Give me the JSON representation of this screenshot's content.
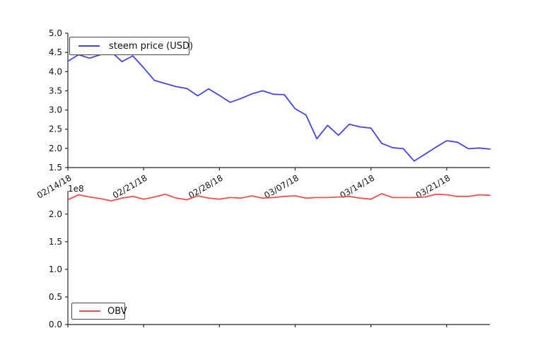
{
  "figure": {
    "background": "#ffffff",
    "spine_color": "#262626",
    "title": ""
  },
  "chart_data": [
    {
      "type": "line",
      "title": "",
      "xlabel": "",
      "ylabel": "",
      "grid": false,
      "legend": {
        "position": "upper-left",
        "entries": [
          {
            "label": "steem price (USD)",
            "color": "#4446dc"
          }
        ]
      },
      "ylim": [
        1.5,
        5.0
      ],
      "ytick_labels": [
        "1.5",
        "2.0",
        "2.5",
        "3.0",
        "3.5",
        "4.0",
        "4.5",
        "5.0"
      ],
      "yticks": [
        1.5,
        2.0,
        2.5,
        3.0,
        3.5,
        4.0,
        4.5,
        5.0
      ],
      "xtick_labels": [
        "02/14/18",
        "02/21/18",
        "02/28/18",
        "03/07/18",
        "03/14/18",
        "03/21/18"
      ],
      "xtick_day_index": [
        0,
        7,
        14,
        21,
        28,
        35
      ],
      "x": [
        "02/14/18",
        "02/15/18",
        "02/16/18",
        "02/17/18",
        "02/18/18",
        "02/19/18",
        "02/20/18",
        "02/21/18",
        "02/22/18",
        "02/23/18",
        "02/24/18",
        "02/25/18",
        "02/26/18",
        "02/27/18",
        "02/28/18",
        "03/01/18",
        "03/02/18",
        "03/03/18",
        "03/04/18",
        "03/05/18",
        "03/06/18",
        "03/07/18",
        "03/08/18",
        "03/09/18",
        "03/10/18",
        "03/11/18",
        "03/12/18",
        "03/13/18",
        "03/14/18",
        "03/15/18",
        "03/16/18",
        "03/17/18",
        "03/18/18",
        "03/19/18",
        "03/20/18",
        "03/21/18",
        "03/22/18",
        "03/23/18",
        "03/24/18",
        "03/25/18"
      ],
      "series": [
        {
          "name": "steem price (USD)",
          "color": "#4446dc",
          "values": [
            4.27,
            4.44,
            4.35,
            4.44,
            4.52,
            4.26,
            4.41,
            4.1,
            3.77,
            3.69,
            3.61,
            3.56,
            3.37,
            3.55,
            3.38,
            3.2,
            3.3,
            3.42,
            3.5,
            3.41,
            3.4,
            3.03,
            2.87,
            2.25,
            2.6,
            2.34,
            2.63,
            2.56,
            2.53,
            2.13,
            2.02,
            1.99,
            1.67,
            1.85,
            2.03,
            2.2,
            2.16,
            1.99,
            2.01,
            1.98
          ]
        }
      ]
    },
    {
      "type": "line",
      "title": "",
      "xlabel": "",
      "ylabel": "",
      "grid": false,
      "offset_label": "1e8",
      "units_multiplier": 100000000,
      "legend": {
        "position": "lower-left",
        "entries": [
          {
            "label": "OBV",
            "color": "#ef5151"
          }
        ]
      },
      "ylim": [
        0.0,
        2.42
      ],
      "ytick_labels": [
        "0.0",
        "0.5",
        "1.0",
        "1.5",
        "2.0"
      ],
      "yticks": [
        0.0,
        0.5,
        1.0,
        1.5,
        2.0
      ],
      "xtick_labels": [],
      "xtick_day_index": [
        0,
        7,
        14,
        21,
        28,
        35
      ],
      "x": [
        "02/14/18",
        "02/15/18",
        "02/16/18",
        "02/17/18",
        "02/18/18",
        "02/19/18",
        "02/20/18",
        "02/21/18",
        "02/22/18",
        "02/23/18",
        "02/24/18",
        "02/25/18",
        "02/26/18",
        "02/27/18",
        "02/28/18",
        "03/01/18",
        "03/02/18",
        "03/03/18",
        "03/04/18",
        "03/05/18",
        "03/06/18",
        "03/07/18",
        "03/08/18",
        "03/09/18",
        "03/10/18",
        "03/11/18",
        "03/12/18",
        "03/13/18",
        "03/14/18",
        "03/15/18",
        "03/16/18",
        "03/17/18",
        "03/18/18",
        "03/19/18",
        "03/20/18",
        "03/21/18",
        "03/22/18",
        "03/23/18",
        "03/24/18",
        "03/25/18"
      ],
      "series": [
        {
          "name": "OBV",
          "color": "#ef5151",
          "values": [
            2.26,
            2.35,
            2.31,
            2.28,
            2.24,
            2.29,
            2.32,
            2.27,
            2.31,
            2.36,
            2.29,
            2.26,
            2.33,
            2.29,
            2.27,
            2.3,
            2.29,
            2.33,
            2.29,
            2.3,
            2.32,
            2.33,
            2.29,
            2.3,
            2.3,
            2.31,
            2.32,
            2.29,
            2.27,
            2.37,
            2.3,
            2.3,
            2.3,
            2.31,
            2.36,
            2.35,
            2.32,
            2.32,
            2.35,
            2.34
          ]
        }
      ]
    }
  ]
}
